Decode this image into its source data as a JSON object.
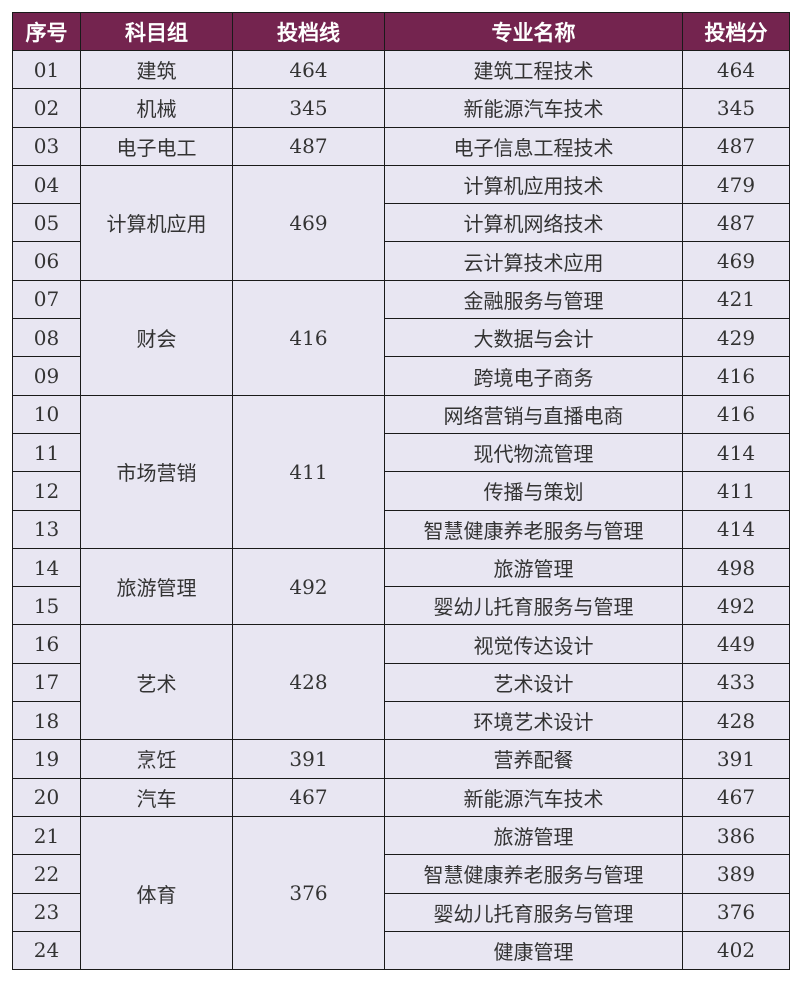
{
  "colors": {
    "header_bg": "#74244f",
    "header_text": "#ffffff",
    "cell_bg": "#e8e6f2",
    "border": "#1a1a1a"
  },
  "headers": [
    "序号",
    "科目组",
    "投档线",
    "专业名称",
    "投档分"
  ],
  "groups": [
    {
      "subject": "建筑",
      "line": "464",
      "rows": [
        {
          "no": "01",
          "major": "建筑工程技术",
          "score": "464"
        }
      ]
    },
    {
      "subject": "机械",
      "line": "345",
      "rows": [
        {
          "no": "02",
          "major": "新能源汽车技术",
          "score": "345"
        }
      ]
    },
    {
      "subject": "电子电工",
      "line": "487",
      "rows": [
        {
          "no": "03",
          "major": "电子信息工程技术",
          "score": "487"
        }
      ]
    },
    {
      "subject": "计算机应用",
      "line": "469",
      "rows": [
        {
          "no": "04",
          "major": "计算机应用技术",
          "score": "479"
        },
        {
          "no": "05",
          "major": "计算机网络技术",
          "score": "487"
        },
        {
          "no": "06",
          "major": "云计算技术应用",
          "score": "469"
        }
      ]
    },
    {
      "subject": "财会",
      "line": "416",
      "rows": [
        {
          "no": "07",
          "major": "金融服务与管理",
          "score": "421"
        },
        {
          "no": "08",
          "major": "大数据与会计",
          "score": "429"
        },
        {
          "no": "09",
          "major": "跨境电子商务",
          "score": "416"
        }
      ]
    },
    {
      "subject": "市场营销",
      "line": "411",
      "rows": [
        {
          "no": "10",
          "major": "网络营销与直播电商",
          "score": "416"
        },
        {
          "no": "11",
          "major": "现代物流管理",
          "score": "414"
        },
        {
          "no": "12",
          "major": "传播与策划",
          "score": "411"
        },
        {
          "no": "13",
          "major": "智慧健康养老服务与管理",
          "score": "414"
        }
      ]
    },
    {
      "subject": "旅游管理",
      "line": "492",
      "rows": [
        {
          "no": "14",
          "major": "旅游管理",
          "score": "498"
        },
        {
          "no": "15",
          "major": "婴幼儿托育服务与管理",
          "score": "492"
        }
      ]
    },
    {
      "subject": "艺术",
      "line": "428",
      "rows": [
        {
          "no": "16",
          "major": "视觉传达设计",
          "score": "449"
        },
        {
          "no": "17",
          "major": "艺术设计",
          "score": "433"
        },
        {
          "no": "18",
          "major": "环境艺术设计",
          "score": "428"
        }
      ]
    },
    {
      "subject": "烹饪",
      "line": "391",
      "rows": [
        {
          "no": "19",
          "major": "营养配餐",
          "score": "391"
        }
      ]
    },
    {
      "subject": "汽车",
      "line": "467",
      "rows": [
        {
          "no": "20",
          "major": "新能源汽车技术",
          "score": "467"
        }
      ]
    },
    {
      "subject": "体育",
      "line": "376",
      "rows": [
        {
          "no": "21",
          "major": "旅游管理",
          "score": "386"
        },
        {
          "no": "22",
          "major": "智慧健康养老服务与管理",
          "score": "389"
        },
        {
          "no": "23",
          "major": "婴幼儿托育服务与管理",
          "score": "376"
        },
        {
          "no": "24",
          "major": "健康管理",
          "score": "402"
        }
      ]
    }
  ]
}
